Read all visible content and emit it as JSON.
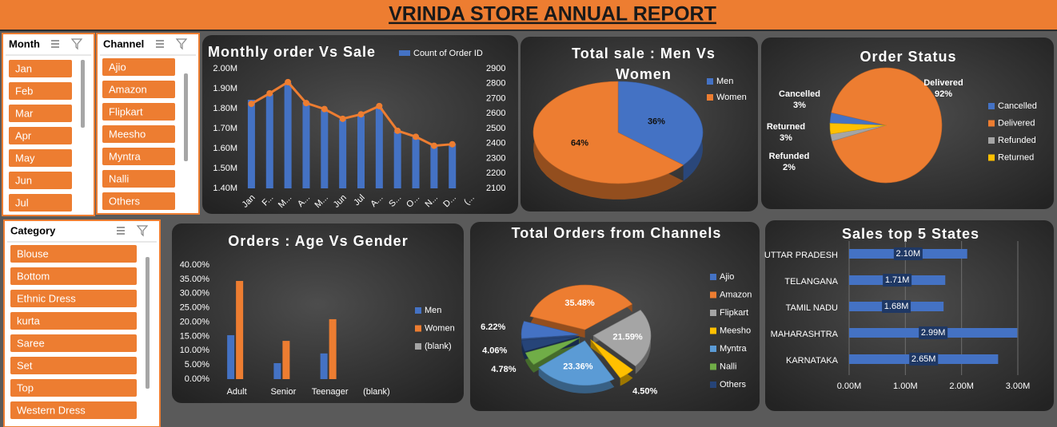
{
  "header": {
    "title": "VRINDA STORE ANNUAL REPORT"
  },
  "slicers": [
    {
      "title": "Month",
      "items": [
        "Jan",
        "Feb",
        "Mar",
        "Apr",
        "May",
        "Jun",
        "Jul"
      ]
    },
    {
      "title": "Channel",
      "items": [
        "Ajio",
        "Amazon",
        "Flipkart",
        "Meesho",
        "Myntra",
        "Nalli",
        "Others"
      ]
    },
    {
      "title": "Category",
      "items": [
        "Blouse",
        "Bottom",
        "Ethnic Dress",
        "kurta",
        "Saree",
        "Set",
        "Top",
        "Western Dress"
      ]
    }
  ],
  "chart_data": [
    {
      "type": "combo",
      "title": "Monthly order Vs Sale",
      "categories": [
        "Jan",
        "F...",
        "M...",
        "A...",
        "M...",
        "Jun",
        "Jul",
        "A...",
        "S...",
        "O...",
        "N...",
        "D...",
        "(..."
      ],
      "series": [
        {
          "name": "Count of Order ID",
          "color": "#4472c4",
          "values": [
            1844000,
            1872000,
            1928000,
            1832000,
            1792000,
            1744000,
            1764000,
            1804000,
            1684000,
            1656000,
            1616000,
            1624000,
            null
          ]
        },
        {
          "type": "line",
          "axis": "y2",
          "color": "#ed7d31",
          "values": [
            2665,
            2735,
            2810,
            2670,
            2630,
            2565,
            2595,
            2650,
            2485,
            2445,
            2385,
            2395,
            null
          ]
        }
      ],
      "ylim": [
        1400000,
        2000000
      ],
      "yticks": [
        {
          "value": 1400000,
          "label": "1.40M"
        },
        {
          "value": 1500000,
          "label": "1.50M"
        },
        {
          "value": 1600000,
          "label": "1.60M"
        },
        {
          "value": 1700000,
          "label": "1.70M"
        },
        {
          "value": 1800000,
          "label": "1.80M"
        },
        {
          "value": 1900000,
          "label": "1.90M"
        },
        {
          "value": 2000000,
          "label": "2.00M"
        }
      ],
      "y2lim": [
        2100,
        2900
      ],
      "y2ticks": [
        2100,
        2200,
        2300,
        2400,
        2500,
        2600,
        2700,
        2800,
        2900
      ]
    },
    {
      "type": "pie",
      "title": "Total sale : Men Vs Women",
      "categories": [
        "Men",
        "Women"
      ],
      "values": [
        36,
        64
      ],
      "value_labels": [
        "36%",
        "64%"
      ],
      "colors": [
        "#4472c4",
        "#ed7d31"
      ]
    },
    {
      "type": "pie",
      "title": "Order Status",
      "categories": [
        "Cancelled",
        "Delivered",
        "Refunded",
        "Returned"
      ],
      "values": [
        3,
        92,
        2,
        3
      ],
      "value_labels": [
        "3%",
        "92%",
        "2%",
        "3%"
      ],
      "colors": [
        "#4472c4",
        "#ed7d31",
        "#a5a5a5",
        "#ffc000"
      ]
    },
    {
      "type": "bar",
      "title": "Orders : Age Vs Gender",
      "categories": [
        "Adult",
        "Senior",
        "Teenager",
        "(blank)"
      ],
      "series": [
        {
          "name": "Men",
          "color": "#4472c4",
          "values": [
            15.4,
            5.6,
            9.0,
            null
          ]
        },
        {
          "name": "Women",
          "color": "#ed7d31",
          "values": [
            34.4,
            13.4,
            21.0,
            null
          ]
        },
        {
          "name": "(blank)",
          "color": "#a5a5a5",
          "values": [
            null,
            null,
            null,
            null
          ]
        }
      ],
      "ylim": [
        0,
        40
      ],
      "yticks": [
        {
          "value": 0,
          "label": "0.00%"
        },
        {
          "value": 5,
          "label": "5.00%"
        },
        {
          "value": 10,
          "label": "10.00%"
        },
        {
          "value": 15,
          "label": "15.00%"
        },
        {
          "value": 20,
          "label": "20.00%"
        },
        {
          "value": 25,
          "label": "25.00%"
        },
        {
          "value": 30,
          "label": "30.00%"
        },
        {
          "value": 35,
          "label": "35.00%"
        },
        {
          "value": 40,
          "label": "40.00%"
        }
      ]
    },
    {
      "type": "pie",
      "title": "Total Orders from Channels",
      "categories": [
        "Ajio",
        "Amazon",
        "Flipkart",
        "Meesho",
        "Myntra",
        "Nalli",
        "Others"
      ],
      "values": [
        6.22,
        35.48,
        21.59,
        4.5,
        23.36,
        4.78,
        4.06
      ],
      "value_labels": [
        "6.22%",
        "35.48%",
        "21.59%",
        "4.50%",
        "23.36%",
        "4.78%",
        "4.06%"
      ],
      "colors": [
        "#4472c4",
        "#ed7d31",
        "#a5a5a5",
        "#ffc000",
        "#5b9bd5",
        "#70ad47",
        "#264478"
      ]
    },
    {
      "type": "hbar",
      "title": "Sales top 5 States",
      "categories": [
        "UTTAR PRADESH",
        "TELANGANA",
        "TAMIL NADU",
        "MAHARASHTRA",
        "KARNATAKA"
      ],
      "values": [
        2100000,
        1710000,
        1680000,
        2990000,
        2650000
      ],
      "value_labels": [
        "2.10M",
        "1.71M",
        "1.68M",
        "2.99M",
        "2.65M"
      ],
      "color": "#4472c4",
      "xlim": [
        0,
        3000000
      ],
      "xticks": [
        {
          "value": 0,
          "label": "0.00M"
        },
        {
          "value": 1000000,
          "label": "1.00M"
        },
        {
          "value": 2000000,
          "label": "2.00M"
        },
        {
          "value": 3000000,
          "label": "3.00M"
        }
      ]
    }
  ]
}
